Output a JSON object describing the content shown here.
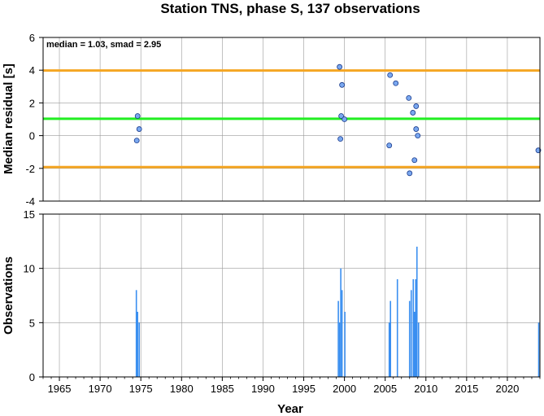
{
  "chart_data": [
    {
      "type": "scatter",
      "title": "Station TNS, phase S, 137 observations",
      "ylabel": "Median residual [s]",
      "annotation": "median = 1.03, smad = 2.95",
      "xlim": [
        1963,
        2024
      ],
      "ylim": [
        -4,
        6
      ],
      "yticks": [
        -4,
        -2,
        0,
        2,
        4,
        6
      ],
      "grid": true,
      "reference_lines": [
        {
          "name": "median",
          "y": 1.03,
          "color": "#22ee22"
        },
        {
          "name": "median + smad",
          "y": 3.98,
          "color": "#f5a623"
        },
        {
          "name": "median - smad",
          "y": -1.92,
          "color": "#f5a623"
        }
      ],
      "points": [
        {
          "x": 1974.6,
          "y": 1.2
        },
        {
          "x": 1974.8,
          "y": 0.4
        },
        {
          "x": 1974.5,
          "y": -0.3
        },
        {
          "x": 1999.4,
          "y": 4.2
        },
        {
          "x": 1999.7,
          "y": 3.1
        },
        {
          "x": 1999.6,
          "y": 1.2
        },
        {
          "x": 2000.0,
          "y": 1.0
        },
        {
          "x": 1999.5,
          "y": -0.2
        },
        {
          "x": 2005.6,
          "y": 3.7
        },
        {
          "x": 2006.3,
          "y": 3.2
        },
        {
          "x": 2007.9,
          "y": 2.3
        },
        {
          "x": 2008.8,
          "y": 1.8
        },
        {
          "x": 2008.4,
          "y": 1.4
        },
        {
          "x": 2008.8,
          "y": 0.4
        },
        {
          "x": 2009.0,
          "y": 0.0
        },
        {
          "x": 2005.5,
          "y": -0.6
        },
        {
          "x": 2008.6,
          "y": -1.5
        },
        {
          "x": 2008.0,
          "y": -2.3
        },
        {
          "x": 2023.8,
          "y": -0.9
        }
      ],
      "point_color": "#7aa8f0"
    },
    {
      "type": "bar",
      "xlabel": "Year",
      "ylabel": "Observations",
      "xlim": [
        1963,
        2024
      ],
      "ylim": [
        0,
        15
      ],
      "yticks": [
        0,
        5,
        10,
        15
      ],
      "xticks": [
        1965,
        1970,
        1975,
        1980,
        1985,
        1990,
        1995,
        2000,
        2005,
        2010,
        2015,
        2020
      ],
      "grid": true,
      "bar_color": "#3a8ff0",
      "bars": [
        {
          "x": 1974.45,
          "value": 8
        },
        {
          "x": 1974.6,
          "value": 6
        },
        {
          "x": 1974.8,
          "value": 5
        },
        {
          "x": 1999.25,
          "value": 7
        },
        {
          "x": 1999.4,
          "value": 5
        },
        {
          "x": 1999.55,
          "value": 10
        },
        {
          "x": 1999.7,
          "value": 8
        },
        {
          "x": 2000.05,
          "value": 6
        },
        {
          "x": 2005.5,
          "value": 5
        },
        {
          "x": 2005.65,
          "value": 7
        },
        {
          "x": 2006.5,
          "value": 9
        },
        {
          "x": 2008.0,
          "value": 7
        },
        {
          "x": 2008.2,
          "value": 8
        },
        {
          "x": 2008.45,
          "value": 9
        },
        {
          "x": 2008.6,
          "value": 6
        },
        {
          "x": 2008.75,
          "value": 9
        },
        {
          "x": 2008.9,
          "value": 12
        },
        {
          "x": 2009.1,
          "value": 5
        },
        {
          "x": 2023.85,
          "value": 5
        }
      ]
    }
  ]
}
